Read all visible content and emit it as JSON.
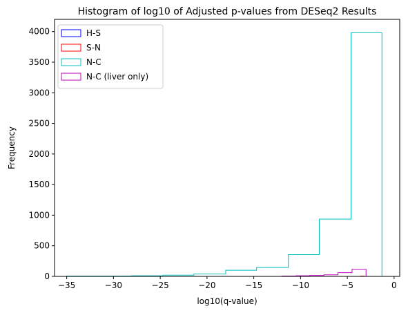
{
  "chart_data": {
    "type": "histogram",
    "title": "Histogram of log10 of Adjusted p-values from DESeq2 Results",
    "xlabel": "log10(q-value)",
    "ylabel": "Frequency",
    "xlim": [
      -36.3,
      0.6
    ],
    "ylim": [
      0,
      4200
    ],
    "xticks": [
      -35,
      -30,
      -25,
      -20,
      -15,
      -10,
      -5,
      0
    ],
    "yticks": [
      0,
      500,
      1000,
      1500,
      2000,
      2500,
      3000,
      3500,
      4000
    ],
    "legend_position": "upper-left",
    "series": [
      {
        "name": "H-S",
        "color": "#0000ff",
        "bin_edges": [],
        "counts": []
      },
      {
        "name": "S-N",
        "color": "#ff0000",
        "bin_edges": [
          -3.6,
          -3.2
        ],
        "counts": [
          4
        ]
      },
      {
        "name": "N-C",
        "color": "#00bfbf",
        "bin_edges": [
          -35.0,
          -31.4,
          -28.1,
          -24.7,
          -21.4,
          -18.0,
          -14.7,
          -11.3,
          -8.0,
          -4.6,
          -1.3
        ],
        "counts": [
          5,
          5,
          10,
          20,
          40,
          100,
          145,
          355,
          935,
          3980
        ]
      },
      {
        "name": "N-C (liver only)",
        "color": "#bf00bf",
        "bin_edges": [
          -12.0,
          -10.5,
          -9.0,
          -7.5,
          -6.0,
          -4.5,
          -3.0,
          -1.3
        ],
        "counts": [
          5,
          10,
          15,
          25,
          60,
          115,
          0
        ]
      }
    ]
  }
}
